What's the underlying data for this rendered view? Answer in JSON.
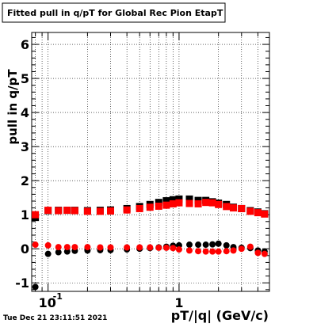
{
  "header": {
    "title": "Fitted pull in q/pT for Global Rec Pion EtapT"
  },
  "footer": {
    "timestamp": "Tue Dec 21 23:11:51 2021"
  },
  "colors": {
    "series_black": "#000000",
    "series_red": "#ff0000",
    "grid": "#000000",
    "background": "#ffffff"
  },
  "chart_data": {
    "type": "scatter",
    "title": "Fitted pull in q/pT for Global Rec Pion EtapT",
    "xlabel": "pT/|q| (GeV/c)",
    "ylabel": "pull in q/pT",
    "xscale": "log",
    "xlim": [
      0.075,
      4.9
    ],
    "ylim": [
      -1.25,
      6.35
    ],
    "grid": true,
    "x_tick_labels": [
      {
        "value": 0.1,
        "base": "10",
        "exp": "-1"
      },
      {
        "value": 1,
        "base": "1",
        "exp": ""
      }
    ],
    "y_ticks": [
      -1,
      0,
      1,
      2,
      3,
      4,
      5,
      6
    ],
    "y_tick_labels": [
      "-1",
      "0",
      "1",
      "2",
      "3",
      "4",
      "5",
      "6"
    ],
    "series": [
      {
        "color": "#000000",
        "marker": "circle",
        "x": [
          0.08,
          0.1,
          0.12,
          0.14,
          0.16,
          0.2,
          0.25,
          0.3,
          0.4,
          0.5,
          0.6,
          0.7,
          0.8,
          0.9,
          1.0,
          1.2,
          1.4,
          1.6,
          1.8,
          2.0,
          2.3,
          2.6,
          3.0,
          3.5,
          4.0,
          4.5
        ],
        "y": [
          -1.12,
          -0.15,
          -0.1,
          -0.08,
          -0.06,
          -0.05,
          -0.04,
          -0.04,
          -0.02,
          0.0,
          0.02,
          0.04,
          0.06,
          0.09,
          0.1,
          0.12,
          0.12,
          0.12,
          0.13,
          0.15,
          0.1,
          0.05,
          0.03,
          0.02,
          -0.05,
          -0.08
        ]
      },
      {
        "color": "#000000",
        "marker": "square",
        "x": [
          0.08,
          0.1,
          0.12,
          0.14,
          0.16,
          0.2,
          0.25,
          0.3,
          0.4,
          0.5,
          0.6,
          0.7,
          0.8,
          0.9,
          1.0,
          1.2,
          1.4,
          1.6,
          1.8,
          2.0,
          2.3,
          2.6,
          3.0,
          3.5,
          4.0,
          4.5
        ],
        "y": [
          0.92,
          1.12,
          1.13,
          1.13,
          1.13,
          1.12,
          1.13,
          1.14,
          1.18,
          1.24,
          1.3,
          1.36,
          1.41,
          1.44,
          1.46,
          1.46,
          1.42,
          1.42,
          1.38,
          1.34,
          1.3,
          1.22,
          1.18,
          1.12,
          1.08,
          1.03
        ]
      },
      {
        "color": "#ff0000",
        "marker": "circle",
        "x": [
          0.08,
          0.1,
          0.12,
          0.14,
          0.16,
          0.2,
          0.25,
          0.3,
          0.4,
          0.5,
          0.6,
          0.7,
          0.8,
          0.9,
          1.0,
          1.2,
          1.4,
          1.6,
          1.8,
          2.0,
          2.3,
          2.6,
          3.0,
          3.5,
          4.0,
          4.5
        ],
        "y": [
          0.12,
          0.1,
          0.05,
          0.05,
          0.05,
          0.05,
          0.04,
          0.04,
          0.04,
          0.04,
          0.04,
          0.03,
          0.03,
          0.02,
          -0.02,
          -0.05,
          -0.07,
          -0.08,
          -0.08,
          -0.08,
          -0.07,
          -0.05,
          0.0,
          0.06,
          -0.12,
          -0.15
        ]
      },
      {
        "color": "#ff0000",
        "marker": "square",
        "x": [
          0.08,
          0.1,
          0.12,
          0.14,
          0.16,
          0.2,
          0.25,
          0.3,
          0.4,
          0.5,
          0.6,
          0.7,
          0.8,
          0.9,
          1.0,
          1.2,
          1.4,
          1.6,
          1.8,
          2.0,
          2.3,
          2.6,
          3.0,
          3.5,
          4.0,
          4.5
        ],
        "y": [
          1.0,
          1.13,
          1.12,
          1.13,
          1.12,
          1.1,
          1.1,
          1.11,
          1.14,
          1.18,
          1.22,
          1.25,
          1.28,
          1.32,
          1.35,
          1.33,
          1.32,
          1.36,
          1.35,
          1.3,
          1.24,
          1.2,
          1.18,
          1.1,
          1.06,
          1.02
        ]
      }
    ]
  }
}
